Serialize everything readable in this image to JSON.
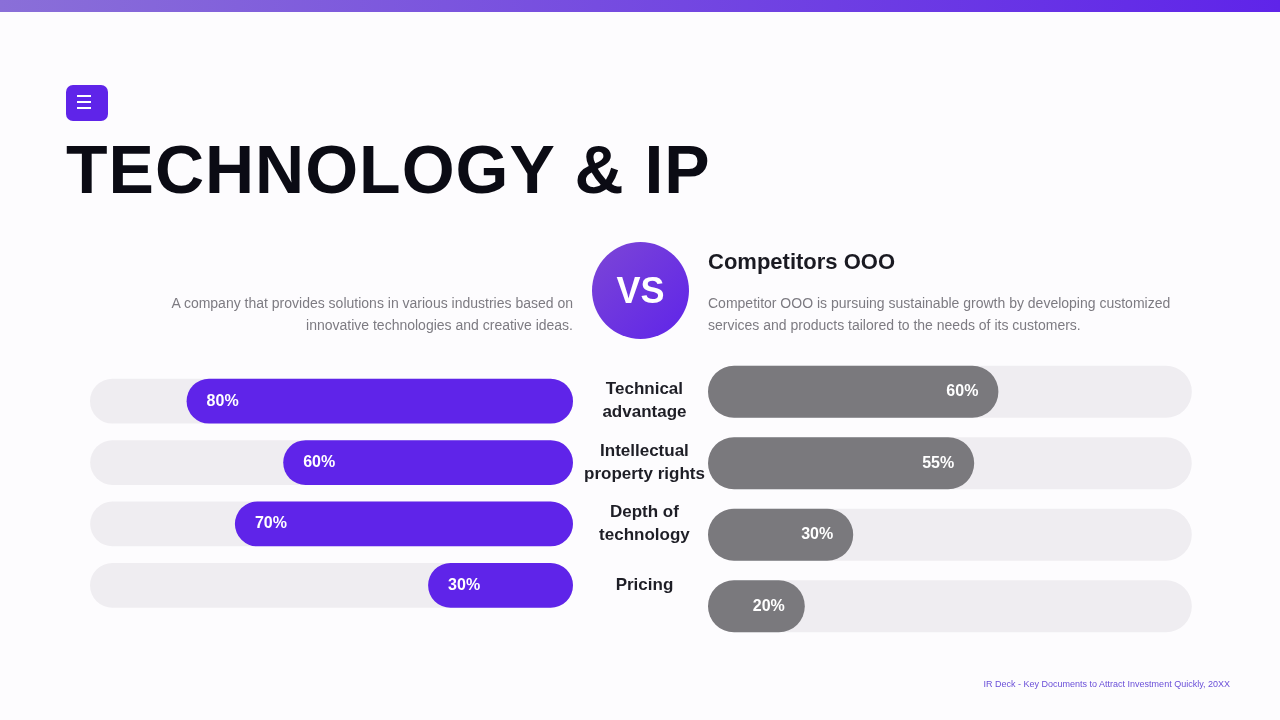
{
  "chart_data": [
    {
      "type": "bar",
      "title": "TECHNOLOGY & IP",
      "subtitle": "A company that provides solutions in various industries based on innovative technologies and creative ideas.",
      "orientation": "horizontal",
      "categories": [
        "Technical advantage",
        "Intellectual property rights",
        "Depth of technology",
        "Pricing"
      ],
      "xlim": [
        100,
        0
      ],
      "tick_labels": "y",
      "legend": false,
      "grid": false,
      "annotations": [
        "VS"
      ],
      "series": [
        {
          "color": "#5f24e9",
          "values": [
            80,
            60,
            70,
            30
          ],
          "value_labels": [
            "80%",
            "60%",
            "70%",
            "30%"
          ]
        }
      ]
    },
    {
      "type": "bar",
      "title": "Competitors OOO",
      "subtitle": "Competitor OOO is pursuing sustainable growth by developing customized services and products tailored to the needs of its customers.",
      "orientation": "horizontal",
      "categories": [
        null,
        null,
        null,
        null
      ],
      "xlim": [
        0,
        100
      ],
      "tick_labels": false,
      "legend": false,
      "grid": false,
      "annotations": [
        "IR Deck - Key Documents to Attract Investment Quickly, 20XX"
      ],
      "series": [
        {
          "color": "#7a797d",
          "values": [
            60,
            55,
            30,
            20
          ],
          "value_labels": [
            "60%",
            "55%",
            "30%",
            "20%"
          ]
        }
      ]
    }
  ]
}
